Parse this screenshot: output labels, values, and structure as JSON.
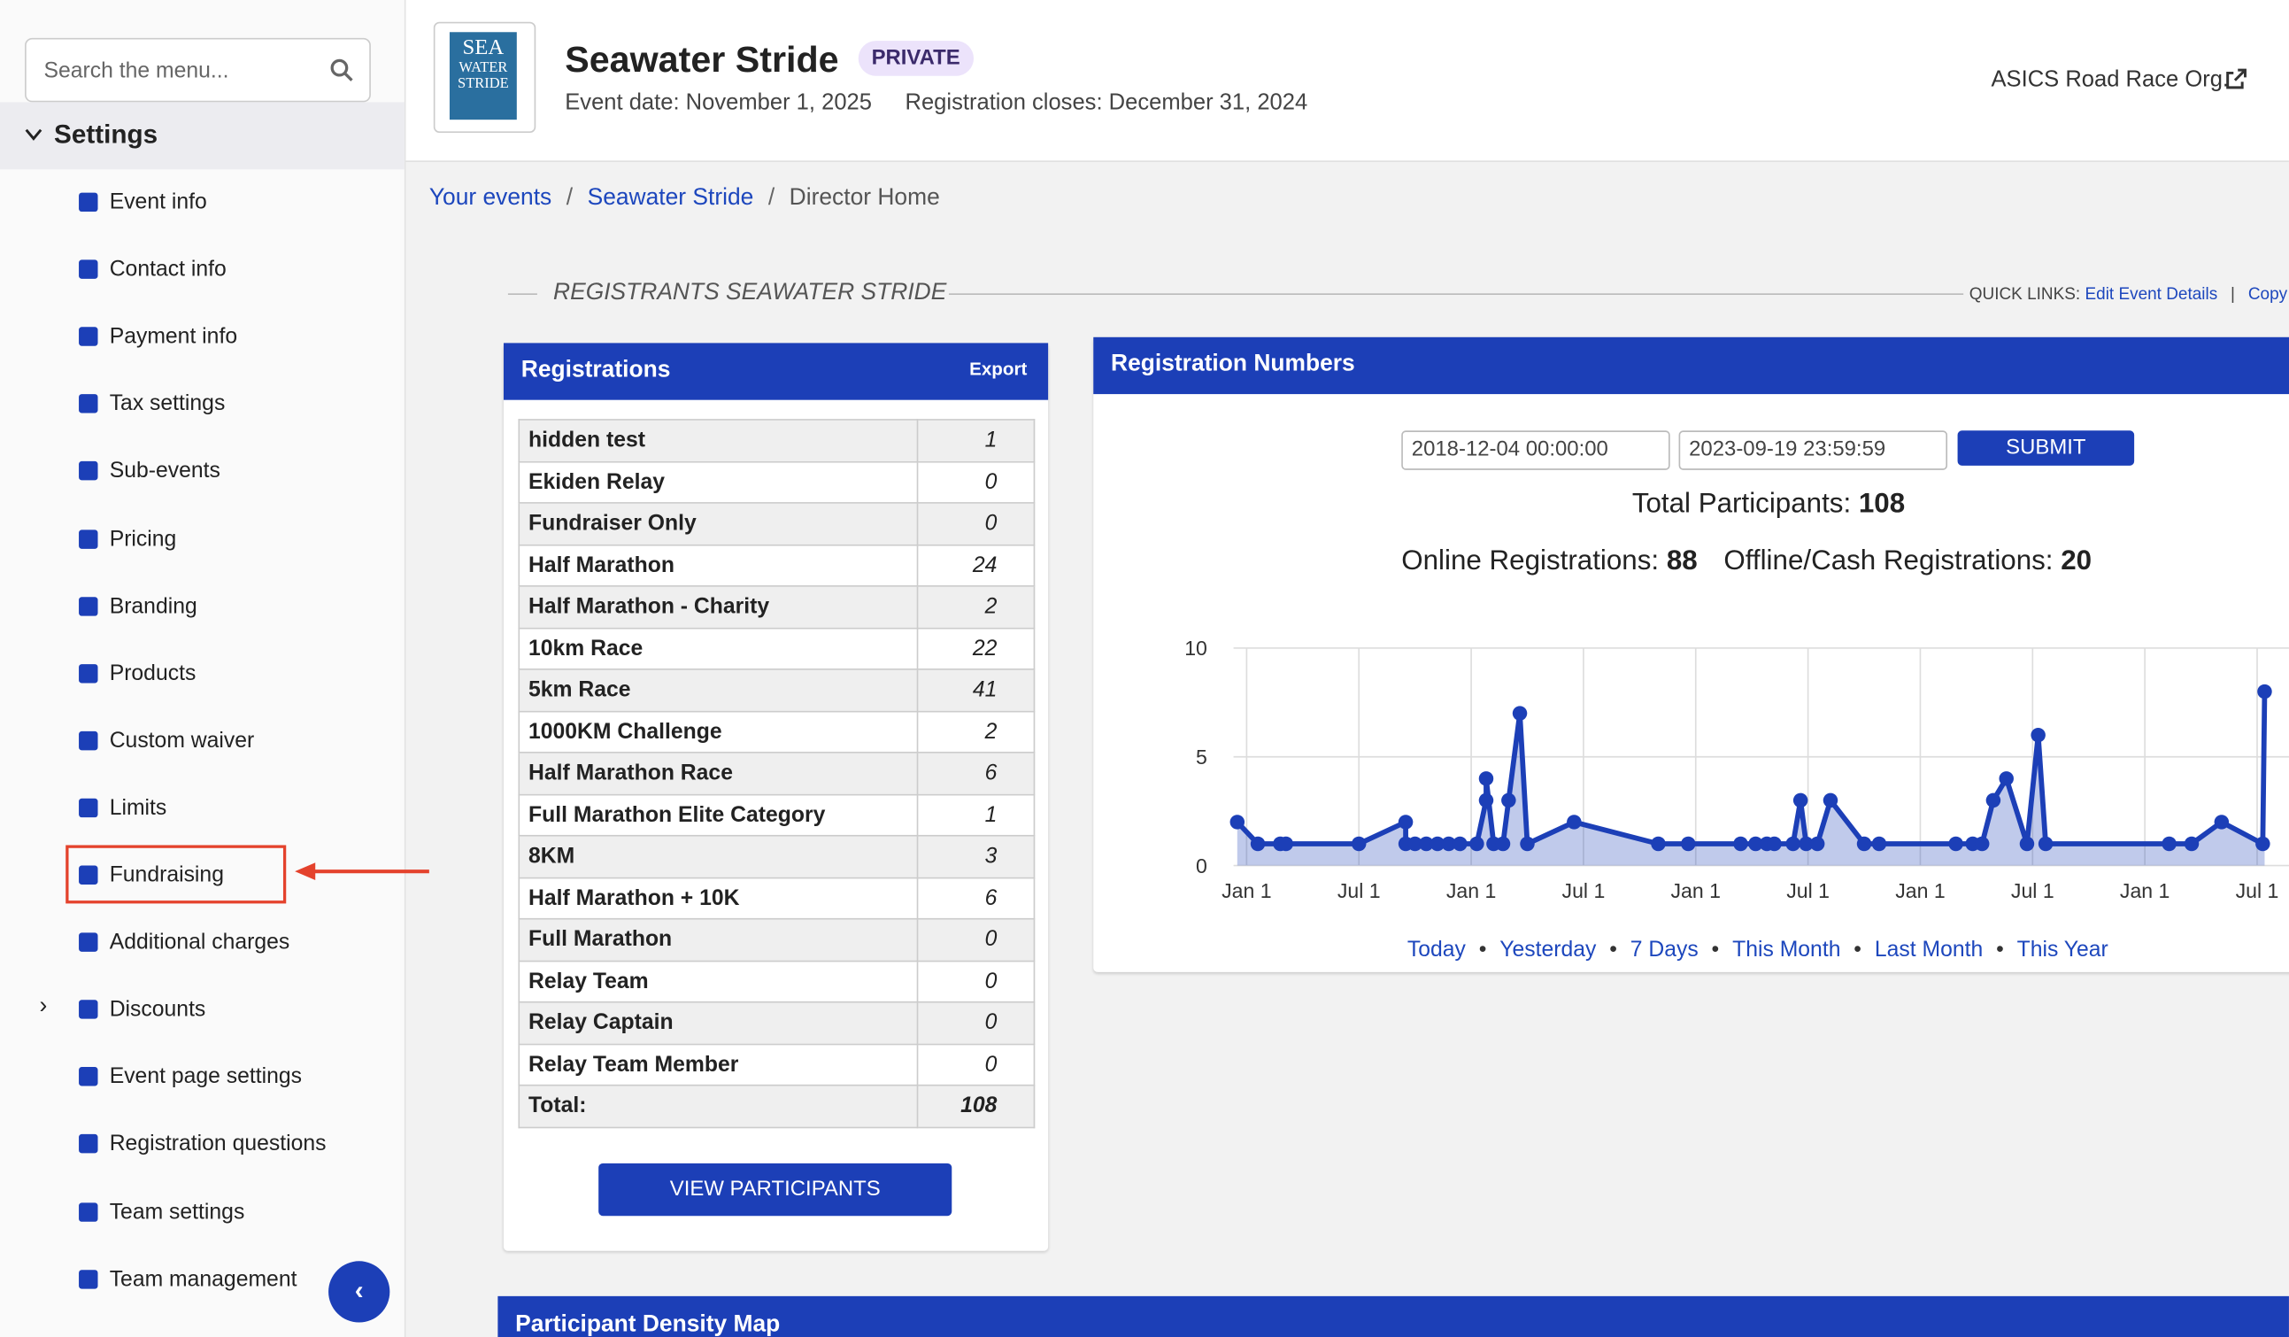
{
  "sidebar": {
    "search_placeholder": "Search the menu...",
    "section": "Settings",
    "items": [
      "Event info",
      "Contact info",
      "Payment info",
      "Tax settings",
      "Sub-events",
      "Pricing",
      "Branding",
      "Products",
      "Custom waiver",
      "Limits",
      "Fundraising",
      "Additional charges",
      "Discounts",
      "Event page settings",
      "Registration questions",
      "Team settings",
      "Team management"
    ]
  },
  "header": {
    "logo_lines": [
      "SEA",
      "WATER",
      "STRIDE"
    ],
    "title": "Seawater Stride",
    "badge": "PRIVATE",
    "event_date": "Event date: November 1, 2025",
    "registration_closes": "Registration closes: December 31, 2024",
    "org": "ASICS Road Race Org."
  },
  "breadcrumb": [
    "Your events",
    "Seawater Stride",
    "Director Home"
  ],
  "section_title": "REGISTRANTS SEAWATER STRIDE",
  "quick_links": {
    "label": "QUICK LINKS:",
    "links": [
      "Edit Event Details",
      "Copy"
    ]
  },
  "registrations": {
    "title": "Registrations",
    "export": "Export",
    "rows": [
      [
        "hidden test",
        "1"
      ],
      [
        "Ekiden Relay",
        "0"
      ],
      [
        "Fundraiser Only",
        "0"
      ],
      [
        "Half Marathon",
        "24"
      ],
      [
        "Half Marathon - Charity",
        "2"
      ],
      [
        "10km Race",
        "22"
      ],
      [
        "5km Race",
        "41"
      ],
      [
        "1000KM Challenge",
        "2"
      ],
      [
        "Half Marathon Race",
        "6"
      ],
      [
        "Full Marathon Elite Category",
        "1"
      ],
      [
        "8KM",
        "3"
      ],
      [
        "Half Marathon + 10K",
        "6"
      ],
      [
        "Full Marathon",
        "0"
      ],
      [
        "Relay Team",
        "0"
      ],
      [
        "Relay Captain",
        "0"
      ],
      [
        "Relay Team Member",
        "0"
      ]
    ],
    "total": [
      "Total:",
      "108"
    ],
    "button": "VIEW PARTICIPANTS"
  },
  "registration_numbers": {
    "title": "Registration Numbers",
    "start": "2018-12-04 00:00:00",
    "end": "2023-09-19 23:59:59",
    "submit": "SUBMIT",
    "total_label": "Total Participants:",
    "total": "108",
    "online_label": "Online Registrations:",
    "online": "88",
    "offline_label": "Offline/Cash Registrations:",
    "offline": "20",
    "ranges": [
      "Today",
      "Yesterday",
      "7 Days",
      "This Month",
      "Last Month",
      "This Year"
    ]
  },
  "chart_data": {
    "type": "line",
    "color": "#1c3fb7",
    "x": [
      -0.5,
      0.6,
      1.8,
      2.1,
      6,
      8.5,
      8.5,
      9.0,
      9.6,
      10.2,
      10.8,
      11.4,
      12.3,
      12.8,
      12.8,
      13.2,
      13.7,
      14.0,
      14.6,
      15.0,
      17.5,
      22.0,
      23.6,
      26.4,
      27.2,
      27.8,
      28.2,
      29.2,
      29.6,
      29.9,
      30.5,
      31.2,
      33.0,
      33.8,
      37.9,
      38.8,
      39.3,
      39.9,
      40.6,
      41.7,
      42.3,
      42.7,
      49.3,
      50.5,
      52.1,
      54.3,
      54.4
    ],
    "values": [
      2,
      1,
      1,
      1,
      1,
      2,
      1,
      1,
      1,
      1,
      1,
      1,
      1,
      3,
      4,
      1,
      1,
      3,
      7,
      1,
      2,
      1,
      1,
      1,
      1,
      1,
      1,
      1,
      3,
      1,
      1,
      3,
      1,
      1,
      1,
      1,
      1,
      3,
      4,
      1,
      6,
      1,
      1,
      1,
      2,
      1,
      8
    ],
    "xlim": [
      -0.7,
      55.7
    ],
    "xticks": [
      {
        "value": 0,
        "label": "Jan 1"
      },
      {
        "value": 6,
        "label": "Jul 1"
      },
      {
        "value": 12,
        "label": "Jan 1"
      },
      {
        "value": 18,
        "label": "Jul 1"
      },
      {
        "value": 24,
        "label": "Jan 1"
      },
      {
        "value": 30,
        "label": "Jul 1"
      },
      {
        "value": 36,
        "label": "Jan 1"
      },
      {
        "value": 42,
        "label": "Jul 1"
      },
      {
        "value": 48,
        "label": "Jan 1"
      },
      {
        "value": 54,
        "label": "Jul 1"
      }
    ],
    "ylim": [
      0,
      10
    ],
    "yticks": [
      0,
      5,
      10
    ],
    "grid": true
  },
  "map_title": "Participant Density Map"
}
